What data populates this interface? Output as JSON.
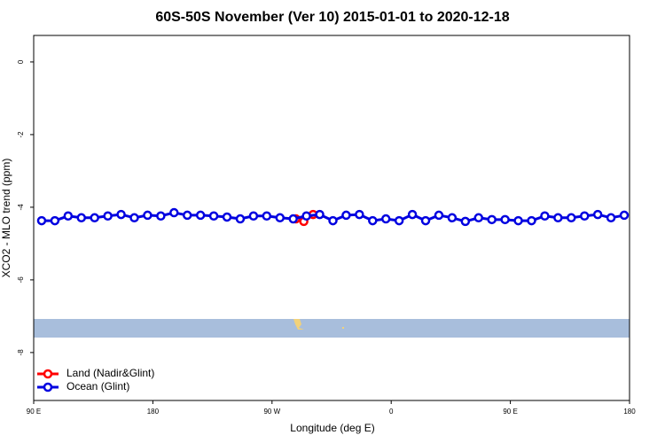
{
  "chart_data": {
    "type": "line",
    "title": "60S-50S November (Ver 10)   2015-01-01 to 2020-12-18",
    "xlabel": "Longitude (deg E)",
    "ylabel": "XCO2 - MLO trend (ppm)",
    "xlim": [
      90,
      540
    ],
    "ylim": [
      -9.32,
      0.73
    ],
    "xticks": [
      {
        "value": 90,
        "label": "90 E"
      },
      {
        "value": 180,
        "label": "180"
      },
      {
        "value": 270,
        "label": "90 W"
      },
      {
        "value": 360,
        "label": "0"
      },
      {
        "value": 450,
        "label": "90 E"
      },
      {
        "value": 540,
        "label": "180"
      }
    ],
    "yticks": [
      0,
      -2,
      -4,
      -6,
      -8
    ],
    "legend": "bottom-left",
    "series": [
      {
        "name": "Land (Nadir&Glint)",
        "color": "#ff0000",
        "x": [
          288,
          294,
          301
        ],
        "values": [
          -4.32,
          -4.39,
          -4.2
        ]
      },
      {
        "name": "Ocean (Glint)",
        "color": "#0000e0",
        "x": [
          96,
          106,
          116,
          126,
          136,
          146,
          156,
          166,
          176,
          186,
          196,
          206,
          216,
          226,
          236,
          246,
          256,
          266,
          276,
          286,
          296,
          306,
          316,
          326,
          336,
          346,
          356,
          366,
          376,
          386,
          396,
          406,
          416,
          426,
          436,
          446,
          456,
          466,
          476,
          486,
          496,
          506,
          516,
          526,
          536
        ],
        "values": [
          -4.37,
          -4.37,
          -4.24,
          -4.29,
          -4.29,
          -4.24,
          -4.2,
          -4.29,
          -4.22,
          -4.24,
          -4.15,
          -4.22,
          -4.22,
          -4.24,
          -4.27,
          -4.32,
          -4.24,
          -4.24,
          -4.29,
          -4.32,
          -4.24,
          -4.2,
          -4.37,
          -4.22,
          -4.2,
          -4.37,
          -4.32,
          -4.37,
          -4.2,
          -4.37,
          -4.22,
          -4.29,
          -4.39,
          -4.29,
          -4.34,
          -4.34,
          -4.37,
          -4.37,
          -4.24,
          -4.29,
          -4.29,
          -4.24,
          -4.2,
          -4.29,
          -4.22
        ]
      }
    ]
  }
}
